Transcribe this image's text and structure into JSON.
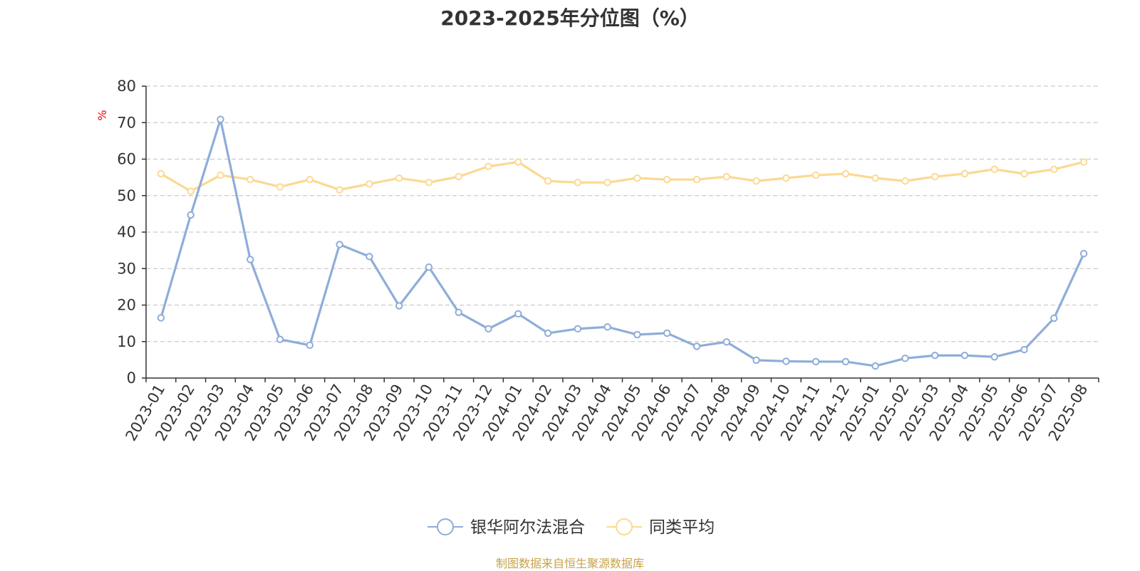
{
  "chart_data": {
    "type": "line",
    "title": "2023-2025年分位图（%）",
    "ylabel": "%",
    "ylim": [
      0,
      80
    ],
    "yticks": [
      0,
      10,
      20,
      30,
      40,
      50,
      60,
      70,
      80
    ],
    "grid": true,
    "legend_position": "bottom-center",
    "x": [
      "2023-01",
      "2023-02",
      "2023-03",
      "2023-04",
      "2023-05",
      "2023-06",
      "2023-07",
      "2023-08",
      "2023-09",
      "2023-10",
      "2023-11",
      "2023-12",
      "2024-01",
      "2024-02",
      "2024-03",
      "2024-04",
      "2024-05",
      "2024-06",
      "2024-07",
      "2024-08",
      "2024-09",
      "2024-10",
      "2024-11",
      "2024-12",
      "2025-01",
      "2025-02",
      "2025-03",
      "2025-04",
      "2025-05",
      "2025-06",
      "2025-07",
      "2025-08"
    ],
    "series": [
      {
        "name": "银华阿尔法混合",
        "color": "#8eadd9",
        "values": [
          16.5,
          44.7,
          70.9,
          32.5,
          10.6,
          9.0,
          36.6,
          33.3,
          19.8,
          30.4,
          18.0,
          13.5,
          17.6,
          12.3,
          13.5,
          14.0,
          11.9,
          12.3,
          8.7,
          9.9,
          4.9,
          4.6,
          4.5,
          4.5,
          3.3,
          5.4,
          6.2,
          6.2,
          5.8,
          7.8,
          16.4,
          34.1
        ]
      },
      {
        "name": "同类平均",
        "color": "#fbd992",
        "values": [
          56.0,
          51.2,
          55.6,
          54.4,
          52.4,
          54.4,
          51.6,
          53.2,
          54.8,
          53.6,
          55.2,
          58.0,
          59.2,
          54.0,
          53.6,
          53.6,
          54.8,
          54.4,
          54.4,
          55.2,
          54.0,
          54.8,
          55.6,
          56.0,
          54.8,
          54.0,
          55.2,
          56.0,
          57.2,
          56.0,
          57.2,
          59.2
        ]
      }
    ]
  },
  "footer": {
    "source": "制图数据来自恒生聚源数据库",
    "color": "#c8a24a"
  },
  "colors": {
    "axis": "#333333",
    "grid": "#cccccc",
    "ylabel": "#ff0000",
    "text": "#333333"
  }
}
